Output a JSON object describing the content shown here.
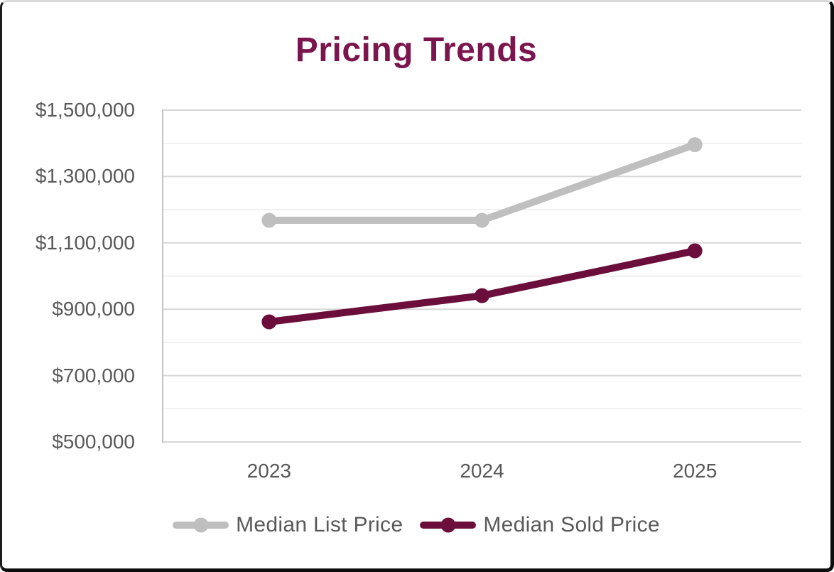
{
  "card": {
    "background": "#ffffff",
    "border_color": "#0d0d0d",
    "border_top_color": "#d9d9d9"
  },
  "chart_data": {
    "type": "line",
    "title": "Pricing Trends",
    "title_color": "#7A164D",
    "categories": [
      "2023",
      "2024",
      "2025"
    ],
    "series": [
      {
        "name": "Median List Price",
        "color": "#BFBFBF",
        "values": [
          1168000,
          1168000,
          1396000
        ]
      },
      {
        "name": "Median Sold Price",
        "color": "#6B0E3C",
        "values": [
          862000,
          941000,
          1076000
        ]
      }
    ],
    "ylim": [
      500000,
      1500000
    ],
    "ytick_step": 100000,
    "yticks_labeled": [
      {
        "value": 1500000,
        "label": "$1,500,000"
      },
      {
        "value": 1300000,
        "label": "$1,300,000"
      },
      {
        "value": 1100000,
        "label": "$1,100,000"
      },
      {
        "value": 900000,
        "label": "$900,000"
      },
      {
        "value": 700000,
        "label": "$700,000"
      },
      {
        "value": 500000,
        "label": "$500,000"
      }
    ],
    "grid": true,
    "legend_position": "bottom",
    "axis_label_color": "#595959",
    "gridline_major_color": "#d7d7d7",
    "gridline_minor_color": "#ebebeb",
    "axis_line_color": "#c6c6c6"
  }
}
